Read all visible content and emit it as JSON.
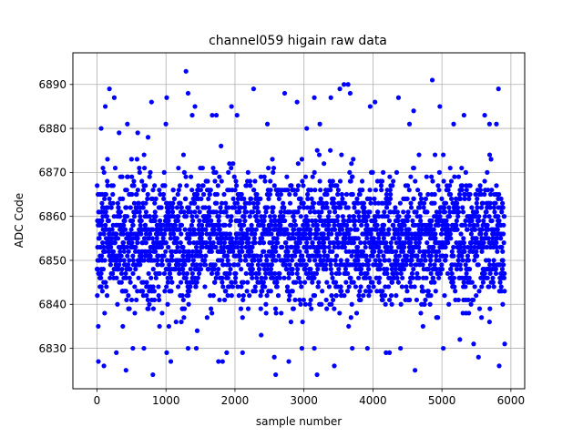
{
  "chart_data": {
    "type": "scatter",
    "title": "channel059 higain raw data",
    "xlabel": "sample number",
    "ylabel": "ADC Code",
    "xlim": [
      -350,
      6200
    ],
    "ylim": [
      6820.8,
      6897.2
    ],
    "xticks": [
      0,
      1000,
      2000,
      3000,
      4000,
      5000,
      6000
    ],
    "yticks": [
      6830,
      6840,
      6850,
      6860,
      6870,
      6880,
      6890
    ],
    "grid": true,
    "marker_color": "#0000ff",
    "series": [
      {
        "n_samples": 5910,
        "y_min": 6824,
        "y_max": 6893,
        "typical_range": [
          6838,
          6872
        ],
        "points": [
          [
            20,
            6827
          ],
          [
            60,
            6880
          ],
          [
            100,
            6826
          ],
          [
            120,
            6885
          ],
          [
            180,
            6889
          ],
          [
            250,
            6887
          ],
          [
            280,
            6829
          ],
          [
            320,
            6879
          ],
          [
            420,
            6825
          ],
          [
            440,
            6881
          ],
          [
            520,
            6830
          ],
          [
            590,
            6879
          ],
          [
            680,
            6830
          ],
          [
            740,
            6878
          ],
          [
            790,
            6886
          ],
          [
            810,
            6824
          ],
          [
            1010,
            6887
          ],
          [
            1010,
            6829
          ],
          [
            1070,
            6827
          ],
          [
            1290,
            6893
          ],
          [
            1320,
            6888
          ],
          [
            1320,
            6830
          ],
          [
            1380,
            6883
          ],
          [
            1420,
            6885
          ],
          [
            1440,
            6830
          ],
          [
            1670,
            6883
          ],
          [
            1730,
            6883
          ],
          [
            1760,
            6827
          ],
          [
            1820,
            6827
          ],
          [
            1880,
            6829
          ],
          [
            1950,
            6885
          ],
          [
            2030,
            6883
          ],
          [
            2110,
            6829
          ],
          [
            2270,
            6889
          ],
          [
            2380,
            6833
          ],
          [
            2470,
            6881
          ],
          [
            2570,
            6828
          ],
          [
            2590,
            6824
          ],
          [
            2720,
            6888
          ],
          [
            2780,
            6827
          ],
          [
            2900,
            6886
          ],
          [
            2970,
            6830
          ],
          [
            3040,
            6880
          ],
          [
            3150,
            6887
          ],
          [
            3150,
            6830
          ],
          [
            3190,
            6824
          ],
          [
            3230,
            6881
          ],
          [
            3390,
            6887
          ],
          [
            3440,
            6826
          ],
          [
            3520,
            6889
          ],
          [
            3580,
            6890
          ],
          [
            3640,
            6890
          ],
          [
            3670,
            6888
          ],
          [
            3700,
            6830
          ],
          [
            3920,
            6830
          ],
          [
            3960,
            6885
          ],
          [
            4030,
            6886
          ],
          [
            4190,
            6829
          ],
          [
            4240,
            6829
          ],
          [
            4370,
            6887
          ],
          [
            4400,
            6830
          ],
          [
            4530,
            6881
          ],
          [
            4590,
            6884
          ],
          [
            4610,
            6825
          ],
          [
            4860,
            6891
          ],
          [
            4970,
            6885
          ],
          [
            5020,
            6830
          ],
          [
            5170,
            6881
          ],
          [
            5260,
            6832
          ],
          [
            5320,
            6883
          ],
          [
            5460,
            6831
          ],
          [
            5530,
            6828
          ],
          [
            5620,
            6883
          ],
          [
            5690,
            6881
          ],
          [
            5790,
            6881
          ],
          [
            5820,
            6889
          ],
          [
            5830,
            6826
          ],
          [
            5910,
            6831
          ]
        ]
      }
    ]
  }
}
